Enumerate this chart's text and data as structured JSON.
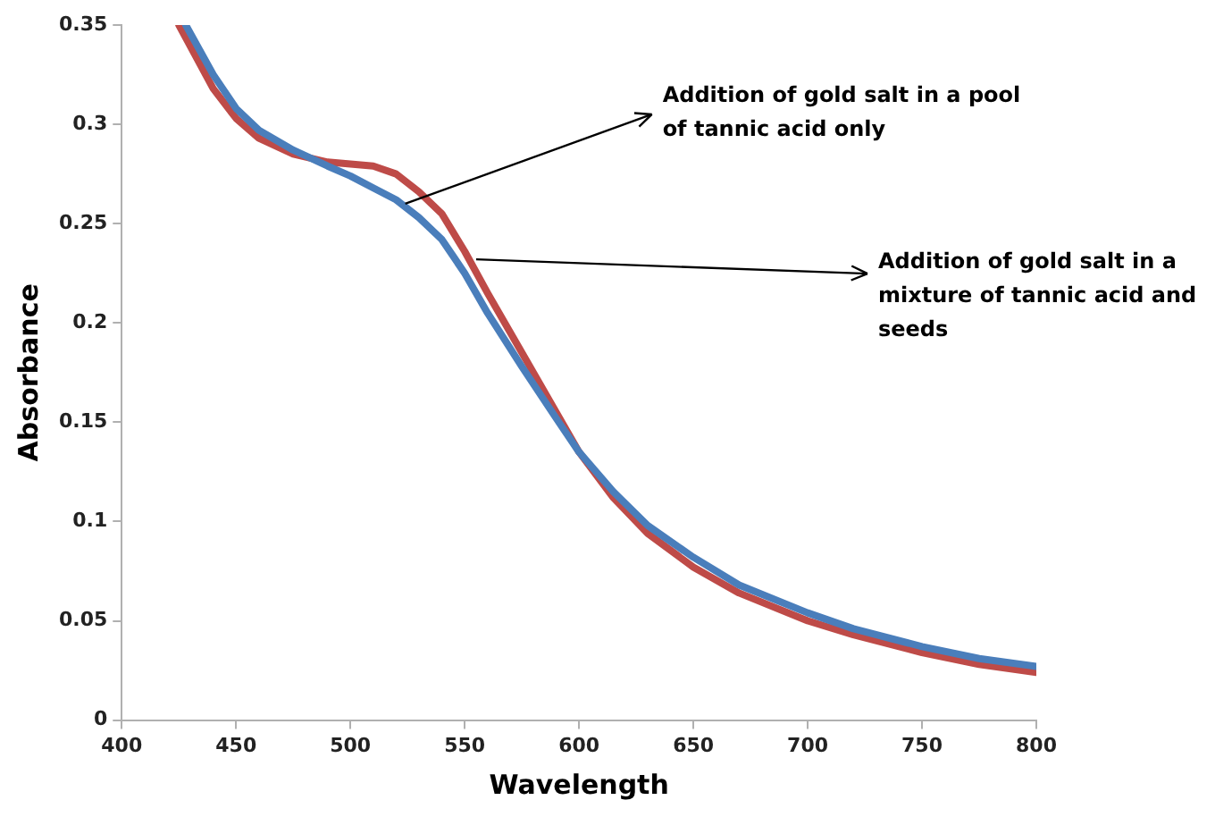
{
  "chart_data": {
    "type": "line",
    "xlabel": "Wavelength",
    "ylabel": "Absorbance",
    "xlim": [
      400,
      800
    ],
    "xticks": [
      400,
      450,
      500,
      550,
      600,
      650,
      700,
      750,
      800
    ],
    "ylim": [
      0,
      0.35
    ],
    "yticks": [
      0,
      0.05,
      0.1,
      0.15,
      0.2,
      0.25,
      0.3,
      0.35
    ],
    "grid": false,
    "legend": false,
    "marker": "none",
    "line_style": "solid",
    "series": [
      {
        "color": "#4a7ebb",
        "x": [
          428,
          440,
          450,
          460,
          475,
          490,
          500,
          510,
          520,
          530,
          540,
          550,
          560,
          575,
          590,
          600,
          615,
          630,
          650,
          670,
          700,
          720,
          750,
          775,
          800
        ],
        "values": [
          0.35,
          0.325,
          0.308,
          0.297,
          0.287,
          0.279,
          0.274,
          0.268,
          0.262,
          0.253,
          0.242,
          0.225,
          0.205,
          0.178,
          0.152,
          0.135,
          0.115,
          0.098,
          0.082,
          0.068,
          0.054,
          0.046,
          0.037,
          0.031,
          0.027
        ]
      },
      {
        "color": "#be4b48",
        "x": [
          425,
          440,
          450,
          460,
          475,
          490,
          500,
          510,
          520,
          530,
          540,
          550,
          560,
          575,
          590,
          600,
          615,
          630,
          650,
          670,
          700,
          720,
          750,
          775,
          800
        ],
        "values": [
          0.35,
          0.318,
          0.303,
          0.293,
          0.285,
          0.281,
          0.28,
          0.279,
          0.275,
          0.266,
          0.255,
          0.236,
          0.215,
          0.185,
          0.155,
          0.135,
          0.112,
          0.094,
          0.077,
          0.064,
          0.05,
          0.043,
          0.034,
          0.028,
          0.024
        ]
      }
    ],
    "annotations": [
      {
        "text": "Addition of gold salt in a pool of tannic acid only",
        "x": 524,
        "y": 0.26
      },
      {
        "text": "Addition of gold salt in a mixture of tannic acid and seeds",
        "x": 555,
        "y": 0.232
      }
    ]
  }
}
